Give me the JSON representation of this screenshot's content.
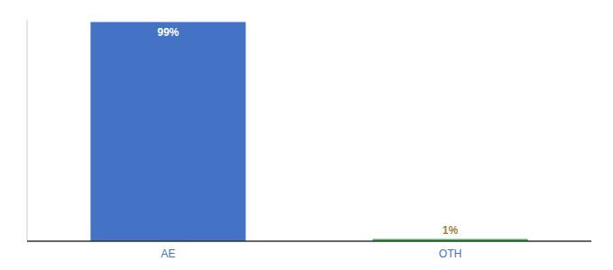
{
  "chart_data": {
    "type": "bar",
    "categories": [
      "AE",
      "OTH"
    ],
    "values": [
      99,
      1
    ],
    "value_labels": [
      "99%",
      "1%"
    ],
    "data_labels": true,
    "colors": [
      "#4472c4",
      "#3cb54a"
    ],
    "ylim": [
      0,
      100
    ],
    "tick_labels": "x"
  }
}
